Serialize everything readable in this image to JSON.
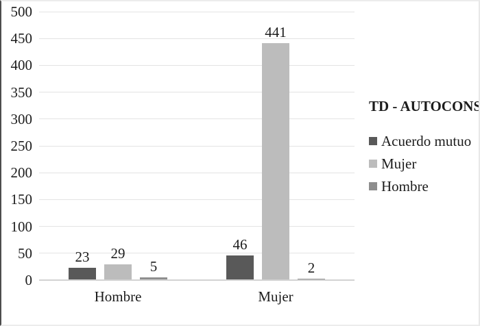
{
  "chart_data": {
    "type": "bar",
    "title": "",
    "categories": [
      "Hombre",
      "Mujer"
    ],
    "series": [
      {
        "name": "Acuerdo mutuo",
        "color": "#595959",
        "values": [
          23,
          46
        ]
      },
      {
        "name": "Mujer",
        "color": "#bcbcbc",
        "values": [
          29,
          441
        ]
      },
      {
        "name": "Hombre",
        "color": "#8e8e8e",
        "values": [
          5,
          2
        ]
      }
    ],
    "ylim": [
      0,
      500
    ],
    "ytick_step": 50,
    "grid": true,
    "legend_position": "right",
    "legend_title": "TD - AUTOCONS",
    "data_labels": true,
    "colors": {
      "gridline": "#e3e3e3",
      "axis_line": "#d2d2d2",
      "text": "#1c1c1c",
      "background": "#ffffff"
    }
  }
}
